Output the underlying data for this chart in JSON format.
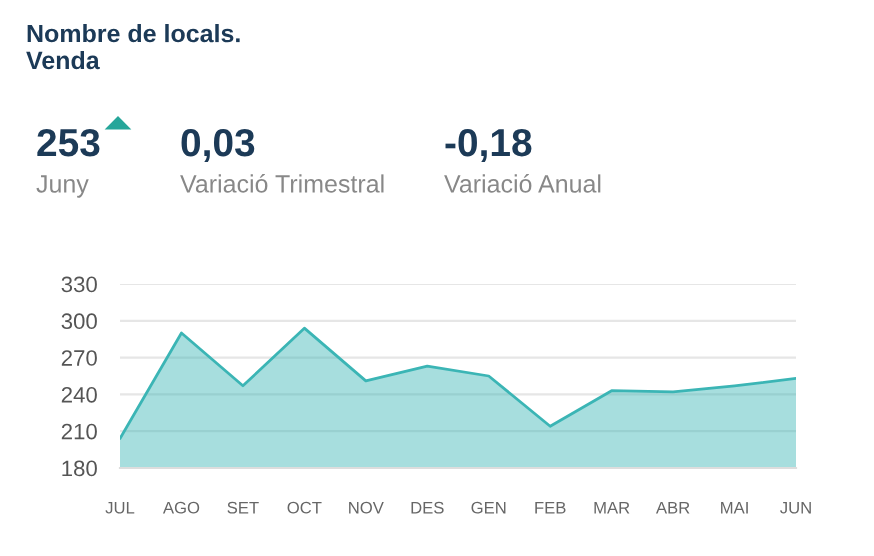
{
  "chart_data": {
    "type": "area",
    "title": "Nombre de locals.\nVenda",
    "annotations": [
      "253",
      "Juny",
      "0,03",
      "Variació Trimestral",
      "-0,18",
      "Variació Anual"
    ],
    "categories": [
      "JUL",
      "AGO",
      "SET",
      "OCT",
      "NOV",
      "DES",
      "GEN",
      "FEB",
      "MAR",
      "ABR",
      "MAI",
      "JUN"
    ],
    "series": [
      {
        "color": "#3bb5b5",
        "values": [
          204,
          290,
          247,
          294,
          251,
          263,
          255,
          214,
          243,
          242,
          247,
          253
        ]
      }
    ],
    "ylim": [
      180,
      330
    ],
    "yticks": [
      180,
      210,
      240,
      270,
      300,
      330
    ],
    "grid": "y",
    "legend": false
  }
}
